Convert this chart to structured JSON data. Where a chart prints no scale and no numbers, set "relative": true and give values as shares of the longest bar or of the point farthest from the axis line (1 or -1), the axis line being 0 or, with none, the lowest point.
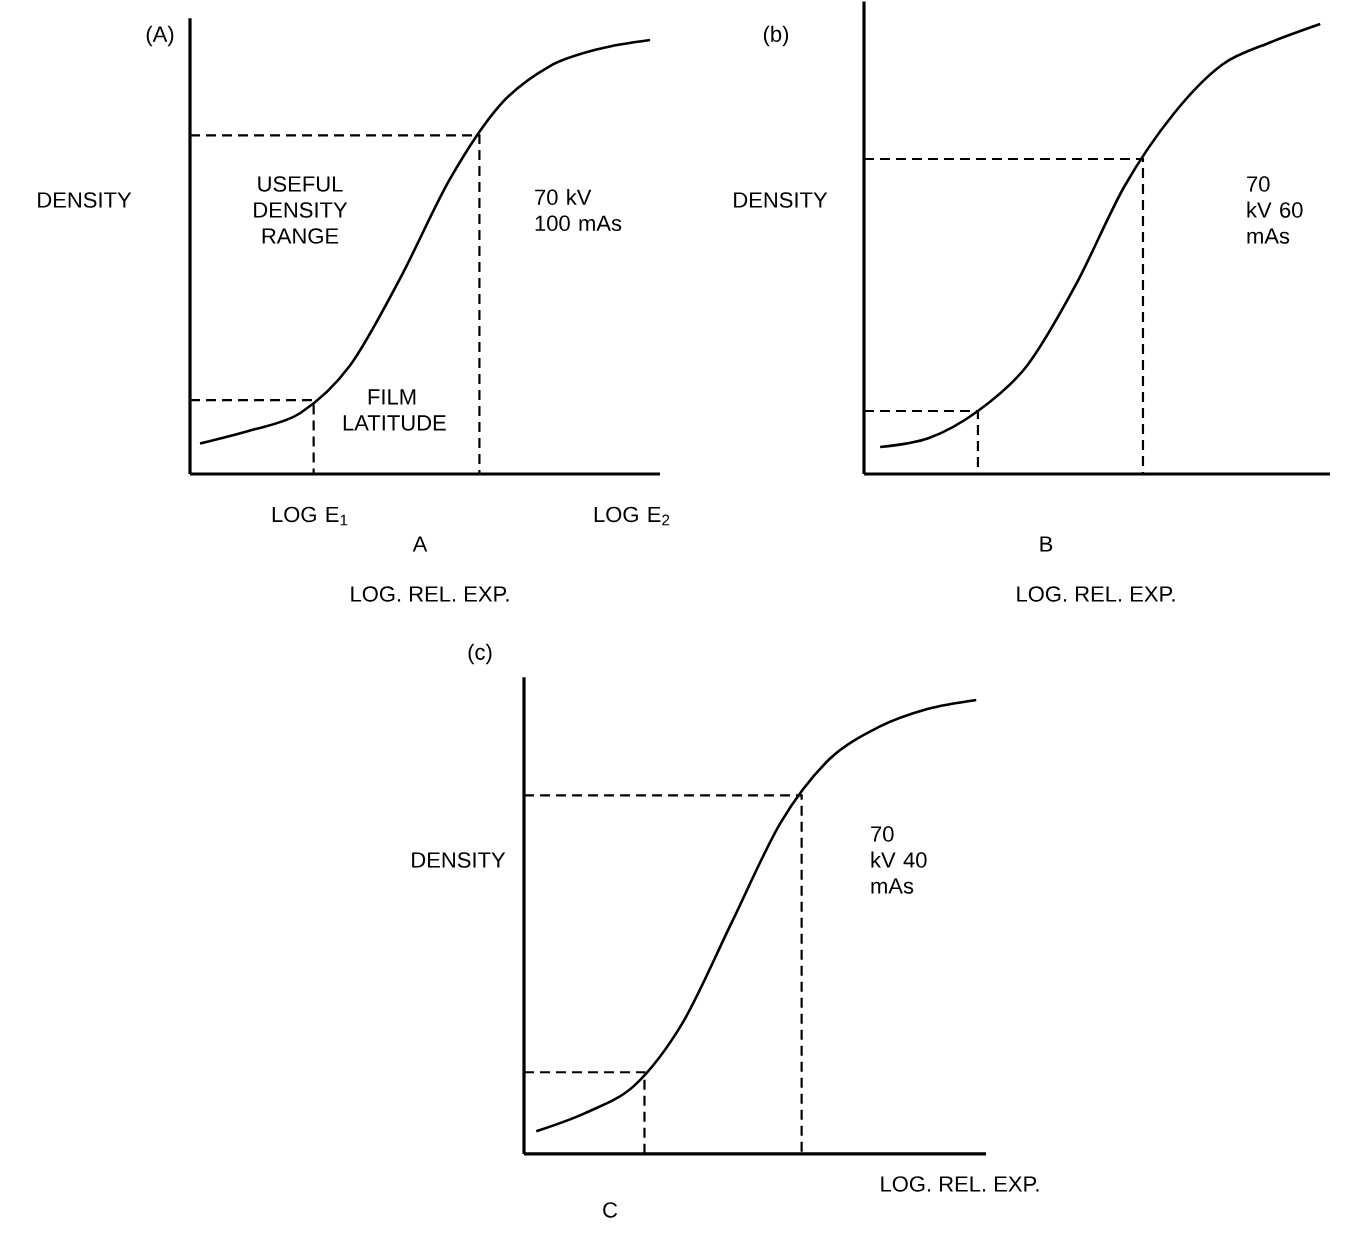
{
  "chart_data": [
    {
      "type": "line",
      "title": "(A)",
      "ylabel": "DENSITY",
      "xlabel": "LOG. REL. EXP.",
      "relative": true,
      "marker": "none",
      "line_style": "solid",
      "categories": [
        null,
        null,
        null,
        null,
        null,
        null,
        null,
        null,
        null,
        null
      ],
      "series": [
        {
          "color": "#000000",
          "values": [
            0.07,
            0.1,
            0.14,
            0.25,
            0.45,
            0.68,
            0.85,
            0.94,
            0.98,
            1.0
          ]
        }
      ],
      "ref_lines": [
        {
          "axis": "y",
          "value": 0.78,
          "line_style": "dashed"
        },
        {
          "axis": "y",
          "value": 0.17,
          "line_style": "dashed"
        }
      ],
      "annotations": [
        "USEFUL DENSITY RANGE",
        "FILM LATITUDE",
        "70 kV 100 mAs",
        "LOG E$_{1}$",
        "LOG E$_{2}$",
        "A"
      ]
    },
    {
      "type": "line",
      "title": "(b)",
      "ylabel": "DENSITY",
      "xlabel": "LOG. REL. EXP.",
      "relative": true,
      "marker": "none",
      "line_style": "solid",
      "categories": [
        null,
        null,
        null,
        null,
        null,
        null,
        null,
        null,
        null,
        null
      ],
      "series": [
        {
          "color": "#000000",
          "values": [
            0.06,
            0.08,
            0.14,
            0.24,
            0.42,
            0.64,
            0.8,
            0.91,
            0.96,
            1.0
          ]
        }
      ],
      "ref_lines": [
        {
          "axis": "y",
          "value": 0.7,
          "line_style": "dashed"
        },
        {
          "axis": "y",
          "value": 0.14,
          "line_style": "dashed"
        }
      ],
      "annotations": [
        "70 kV 60 mAs",
        "B"
      ]
    },
    {
      "type": "line",
      "title": "(c)",
      "ylabel": "DENSITY",
      "xlabel": "LOG. REL. EXP.",
      "relative": true,
      "marker": "none",
      "line_style": "solid",
      "categories": [
        null,
        null,
        null,
        null,
        null,
        null,
        null,
        null,
        null,
        null
      ],
      "series": [
        {
          "color": "#000000",
          "values": [
            0.05,
            0.09,
            0.15,
            0.29,
            0.51,
            0.73,
            0.87,
            0.94,
            0.98,
            1.0
          ]
        }
      ],
      "ref_lines": [
        {
          "axis": "y",
          "value": 0.79,
          "line_style": "dashed"
        },
        {
          "axis": "y",
          "value": 0.18,
          "line_style": "dashed"
        }
      ],
      "annotations": [
        "70 kV 40 mAs",
        "C"
      ]
    }
  ]
}
